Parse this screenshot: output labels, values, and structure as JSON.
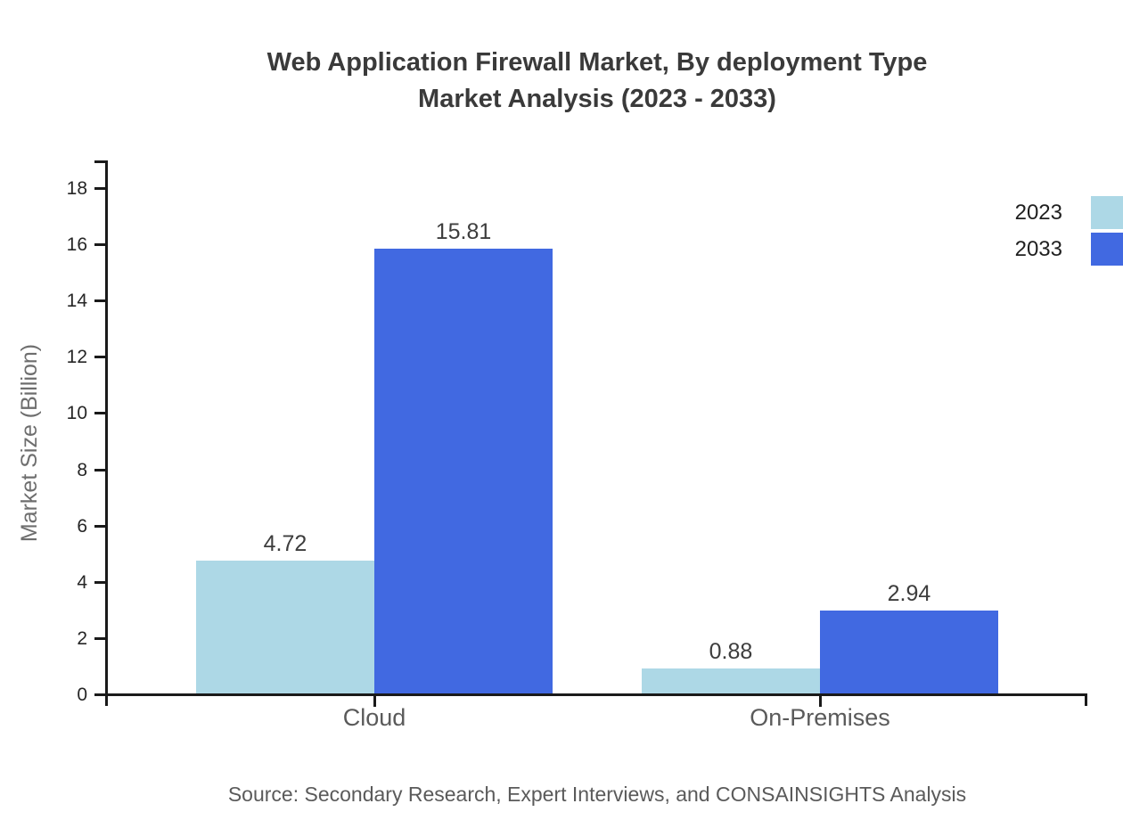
{
  "chart_data": {
    "type": "bar",
    "title": "Web Application Firewall Market, By deployment Type",
    "subtitle": "Market Analysis (2023 - 2033)",
    "categories": [
      "Cloud",
      "On-Premises"
    ],
    "series": [
      {
        "name": "2023",
        "color": "#ADD8E6",
        "values": [
          4.72,
          0.88
        ]
      },
      {
        "name": "2033",
        "color": "#4169E1",
        "values": [
          15.81,
          2.94
        ]
      }
    ],
    "value_labels": [
      "4.72",
      "15.81",
      "0.88",
      "2.94"
    ],
    "xlabel": "",
    "ylabel": "Market Size (Billion)",
    "ylim": [
      0,
      18
    ],
    "yticks": [
      0,
      2,
      4,
      6,
      8,
      10,
      12,
      14,
      16,
      18
    ],
    "grid": false,
    "legend_position": "top-right"
  },
  "footer": {
    "source": "Source: Secondary Research, Expert Interviews, and CONSAINSIGHTS Analysis"
  },
  "colors": {
    "series_2023": "#ADD8E6",
    "series_2033": "#4169E1",
    "axis_line": "#1a1a1a",
    "title_text": "#3a3a3a",
    "tick_label": "#262626",
    "category_label": "#5a5a5a",
    "value_label": "#3d3d3d",
    "axis_title": "#6e6e6e",
    "legend_label": "#1f1f1f",
    "source_text": "#5a5a5a",
    "background": "#ffffff"
  }
}
